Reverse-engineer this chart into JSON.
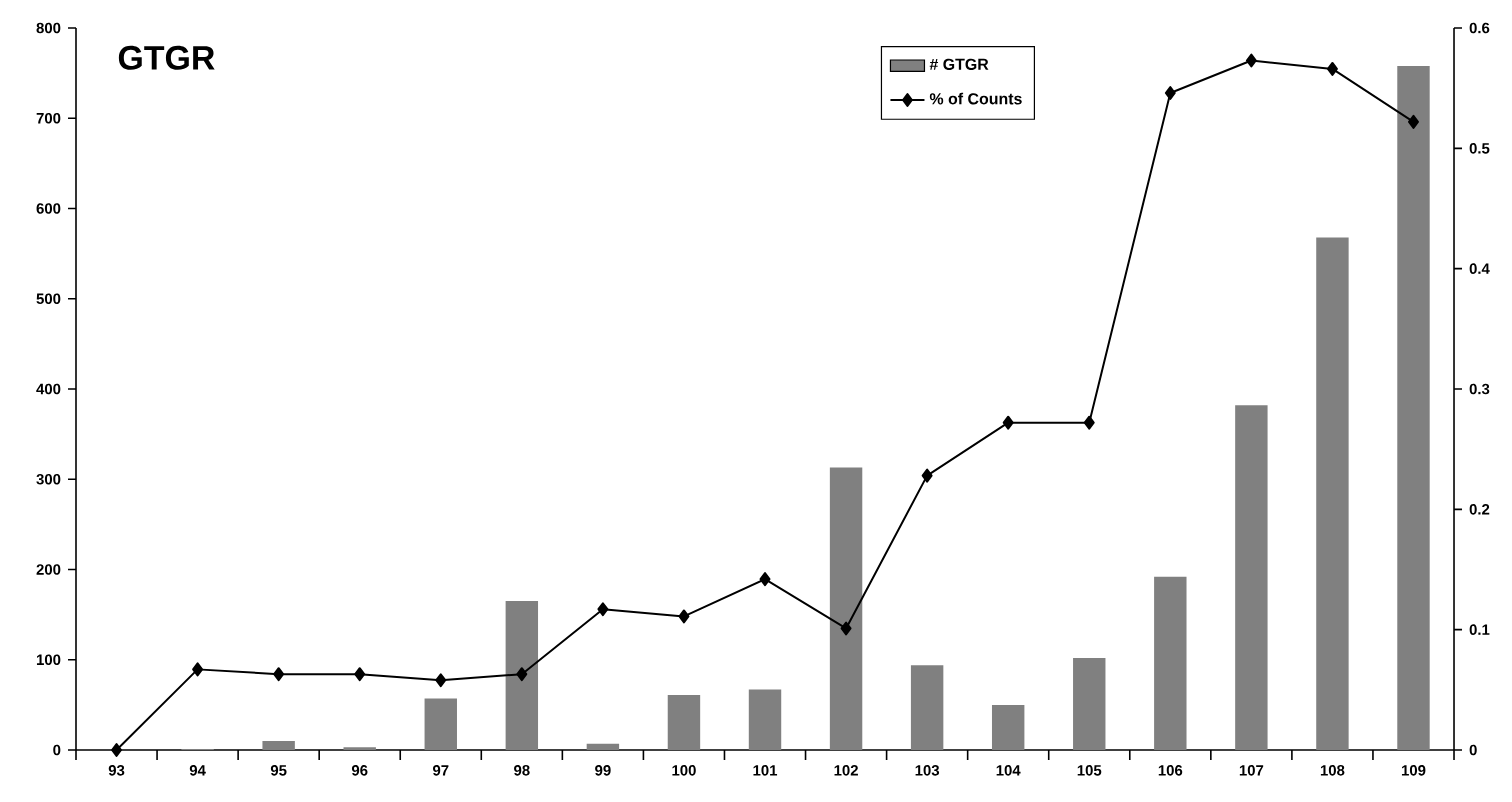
{
  "chart_data": {
    "type": "bar",
    "title": "GTGR",
    "categories": [
      "93",
      "94",
      "95",
      "96",
      "97",
      "98",
      "99",
      "100",
      "101",
      "102",
      "103",
      "104",
      "105",
      "106",
      "107",
      "108",
      "109"
    ],
    "series": [
      {
        "name": "# GTGR",
        "color": "#808080",
        "values": [
          0,
          1,
          10,
          3,
          57,
          165,
          7,
          61,
          67,
          313,
          94,
          50,
          102,
          192,
          382,
          568,
          758
        ]
      },
      {
        "name": "% of Counts",
        "type": "line",
        "axis": "y2",
        "color": "#000000",
        "values": [
          0,
          0.067,
          0.063,
          0.063,
          0.058,
          0.063,
          0.117,
          0.111,
          0.142,
          0.101,
          0.228,
          0.272,
          0.272,
          0.546,
          0.573,
          0.566,
          0.522
        ]
      }
    ],
    "ylim": [
      0,
      800
    ],
    "yticks": [
      0,
      100,
      200,
      300,
      400,
      500,
      600,
      700,
      800
    ],
    "y2lim": [
      0,
      0.6
    ],
    "y2ticks": [
      0,
      0.1,
      0.2,
      0.3,
      0.4,
      0.5,
      0.6
    ],
    "marker": "diamond",
    "legend": "top",
    "grid": false
  }
}
